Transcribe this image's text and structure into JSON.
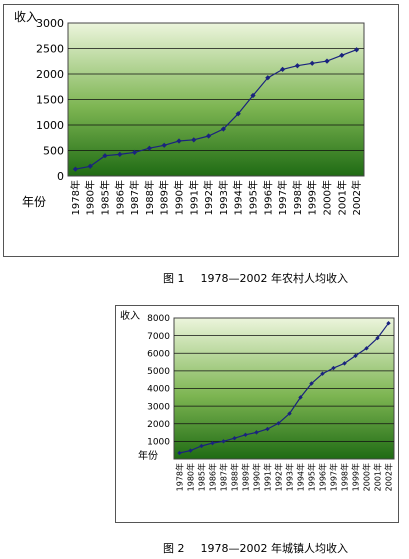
{
  "figures": [
    {
      "caption_label": "图 1",
      "caption_text": "1978—2002 年农村人均收入"
    },
    {
      "caption_label": "图 2",
      "caption_text": "1978—2002 年城镇人均收入"
    }
  ],
  "chart_data": [
    {
      "type": "line",
      "ylabel": "收入",
      "xlabel": "年份",
      "ylim": [
        0,
        3000
      ],
      "yticks": [
        0,
        500,
        1000,
        1500,
        2000,
        2500,
        3000
      ],
      "grid": true,
      "background": "green-gradient",
      "line_color": "#1a237e",
      "marker_color": "#1a237e",
      "categories": [
        "1978年",
        "1980年",
        "1985年",
        "1986年",
        "1987年",
        "1988年",
        "1989年",
        "1990年",
        "1991年",
        "1992年",
        "1993年",
        "1994年",
        "1995年",
        "1996年",
        "1997年",
        "1998年",
        "1999年",
        "2000年",
        "2001年",
        "2002年"
      ],
      "values": [
        134,
        191,
        398,
        424,
        463,
        545,
        602,
        686,
        709,
        784,
        922,
        1221,
        1578,
        1926,
        2090,
        2162,
        2210,
        2253,
        2366,
        2476
      ]
    },
    {
      "type": "line",
      "ylabel": "收入",
      "xlabel": "年份",
      "ylim": [
        0,
        8000
      ],
      "yticks": [
        1000,
        2000,
        3000,
        4000,
        5000,
        6000,
        7000,
        8000
      ],
      "grid": true,
      "background": "green-gradient",
      "line_color": "#1a237e",
      "marker_color": "#1a237e",
      "categories": [
        "1978年",
        "1980年",
        "1985年",
        "1986年",
        "1987年",
        "1988年",
        "1989年",
        "1990年",
        "1991年",
        "1992年",
        "1993年",
        "1994年",
        "1995年",
        "1996年",
        "1997年",
        "1998年",
        "1999年",
        "2000年",
        "2001年",
        "2002年"
      ],
      "values": [
        343,
        478,
        739,
        900,
        1002,
        1180,
        1374,
        1510,
        1701,
        2027,
        2577,
        3496,
        4283,
        4839,
        5160,
        5425,
        5854,
        6280,
        6860,
        7703
      ]
    }
  ]
}
